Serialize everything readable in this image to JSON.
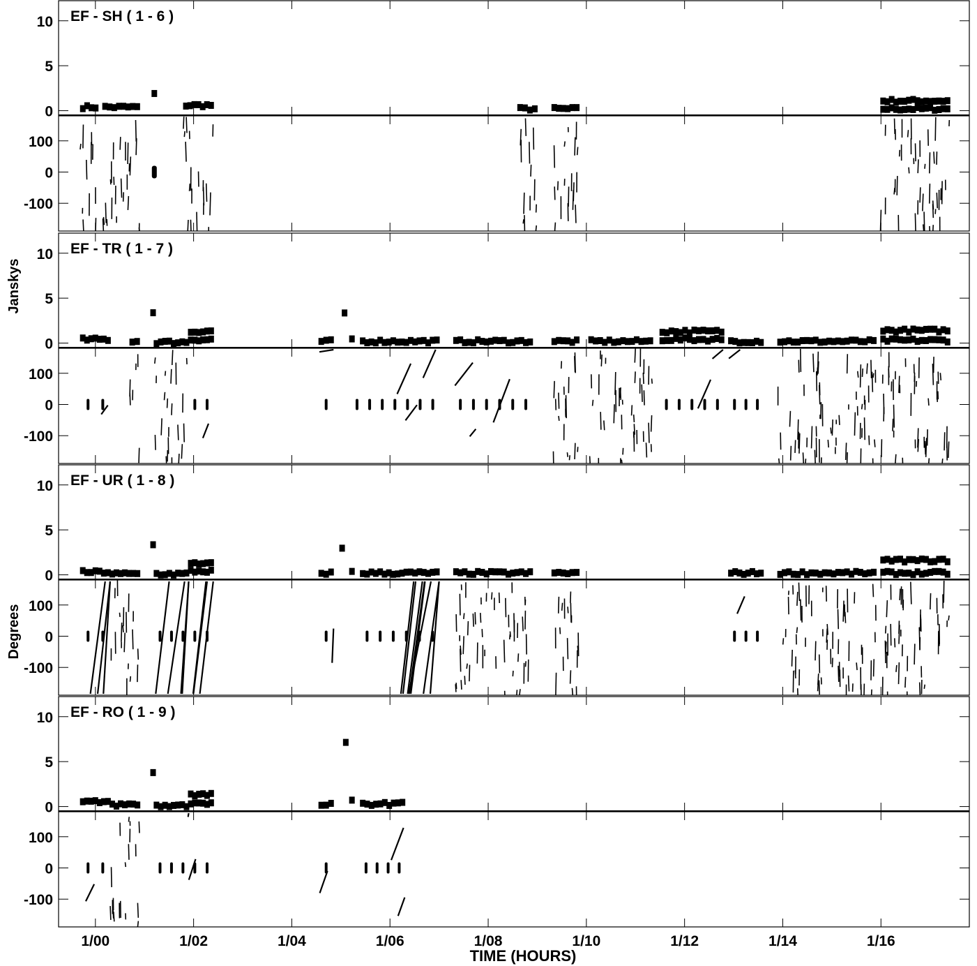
{
  "chart_data": {
    "type": "scatter",
    "xlabel": "TIME (HOURS)",
    "ylabel_amplitude": "Janskys",
    "ylabel_phase": "Degrees",
    "x_ticks": [
      {
        "value": 0,
        "label": "1/00"
      },
      {
        "value": 2,
        "label": "1/02"
      },
      {
        "value": 4,
        "label": "1/04"
      },
      {
        "value": 6,
        "label": "1/06"
      },
      {
        "value": 8,
        "label": "1/08"
      },
      {
        "value": 10,
        "label": "1/10"
      },
      {
        "value": 12,
        "label": "1/12"
      },
      {
        "value": 14,
        "label": "1/14"
      },
      {
        "value": 16,
        "label": "1/16"
      }
    ],
    "xlim": [
      -0.75,
      17.8
    ],
    "amp_ylim": [
      -0.5,
      12
    ],
    "amp_ticks": [
      {
        "value": 0,
        "label": "0"
      },
      {
        "value": 5,
        "label": "5"
      },
      {
        "value": 10,
        "label": "10"
      }
    ],
    "phase_ylim": [
      -180,
      180
    ],
    "phase_ticks": [
      {
        "value": -100,
        "label": "-100"
      },
      {
        "value": 0,
        "label": "0"
      },
      {
        "value": 100,
        "label": "100"
      }
    ],
    "panels": [
      {
        "title": "EF - SH ( 1 - 6 )",
        "amplitude": [
          {
            "t0": -0.3,
            "t1": 0.05,
            "amp": 0.4
          },
          {
            "t0": 0.15,
            "t1": 0.9,
            "amp": 0.4
          },
          {
            "t0": 1.15,
            "t1": 1.25,
            "amp": 1.8
          },
          {
            "t0": 1.8,
            "t1": 2.4,
            "amp": 0.6
          },
          {
            "t0": 8.6,
            "t1": 9.0,
            "amp": 0.2
          },
          {
            "t0": 9.3,
            "t1": 9.85,
            "amp": 0.2
          },
          {
            "t0": 16.0,
            "t1": 17.4,
            "amp": 0.2
          },
          {
            "t0": 16.0,
            "t1": 17.4,
            "amp": 1.1
          }
        ],
        "phase": [
          {
            "t0": -0.3,
            "t1": 0.05,
            "style": "noise"
          },
          {
            "t0": 0.15,
            "t1": 0.9,
            "style": "noise"
          },
          {
            "t0": 1.15,
            "t1": 1.25,
            "style": "zero"
          },
          {
            "t0": 1.8,
            "t1": 2.4,
            "style": "noise"
          },
          {
            "t0": 8.6,
            "t1": 9.0,
            "style": "noise"
          },
          {
            "t0": 9.3,
            "t1": 9.85,
            "style": "noise"
          },
          {
            "t0": 16.0,
            "t1": 17.4,
            "style": "noise"
          }
        ]
      },
      {
        "title": "EF - TR ( 1 - 7 )",
        "amplitude": [
          {
            "t0": -0.3,
            "t1": 0.3,
            "amp": 0.4
          },
          {
            "t0": 0.7,
            "t1": 0.9,
            "amp": 0.2
          },
          {
            "t0": 1.15,
            "t1": 1.2,
            "amp": 3.4
          },
          {
            "t0": 1.2,
            "t1": 1.9,
            "amp": 0.1
          },
          {
            "t0": 1.9,
            "t1": 2.4,
            "amp": 0.4
          },
          {
            "t0": 1.9,
            "t1": 2.4,
            "amp": 1.2
          },
          {
            "t0": 4.55,
            "t1": 4.85,
            "amp": 0.2
          },
          {
            "t0": 5.05,
            "t1": 5.1,
            "amp": 3.3
          },
          {
            "t0": 5.2,
            "t1": 5.25,
            "amp": 0.5
          },
          {
            "t0": 5.4,
            "t1": 7.0,
            "amp": 0.2
          },
          {
            "t0": 7.3,
            "t1": 8.9,
            "amp": 0.2
          },
          {
            "t0": 9.3,
            "t1": 9.85,
            "amp": 0.2
          },
          {
            "t0": 10.05,
            "t1": 11.35,
            "amp": 0.2
          },
          {
            "t0": 11.5,
            "t1": 12.8,
            "amp": 0.4
          },
          {
            "t0": 11.5,
            "t1": 12.8,
            "amp": 1.3
          },
          {
            "t0": 12.9,
            "t1": 13.6,
            "amp": 0.2
          },
          {
            "t0": 13.9,
            "t1": 15.9,
            "amp": 0.2
          },
          {
            "t0": 16.0,
            "t1": 17.4,
            "amp": 0.3
          },
          {
            "t0": 16.0,
            "t1": 17.4,
            "amp": 1.4
          }
        ],
        "phase": [
          {
            "t0": -0.3,
            "t1": 0.3,
            "style": "drift"
          },
          {
            "t0": 0.7,
            "t1": 0.9,
            "style": "noise"
          },
          {
            "t0": 1.2,
            "t1": 1.9,
            "style": "noise"
          },
          {
            "t0": 1.9,
            "t1": 2.4,
            "style": "drift"
          },
          {
            "t0": 4.55,
            "t1": 4.85,
            "style": "drift"
          },
          {
            "t0": 5.2,
            "t1": 7.0,
            "style": "drift"
          },
          {
            "t0": 7.3,
            "t1": 8.9,
            "style": "drift"
          },
          {
            "t0": 9.3,
            "t1": 9.85,
            "style": "noise"
          },
          {
            "t0": 10.05,
            "t1": 11.35,
            "style": "noise"
          },
          {
            "t0": 11.5,
            "t1": 12.8,
            "style": "drift"
          },
          {
            "t0": 12.9,
            "t1": 13.6,
            "style": "drift"
          },
          {
            "t0": 13.9,
            "t1": 15.9,
            "style": "noise"
          },
          {
            "t0": 16.0,
            "t1": 17.4,
            "style": "noise"
          }
        ]
      },
      {
        "title": "EF - UR ( 1 - 8 )",
        "amplitude": [
          {
            "t0": -0.3,
            "t1": 0.3,
            "amp": 0.3
          },
          {
            "t0": 0.3,
            "t1": 0.9,
            "amp": 0.1
          },
          {
            "t0": 1.15,
            "t1": 1.2,
            "amp": 3.4
          },
          {
            "t0": 1.2,
            "t1": 1.9,
            "amp": 0.1
          },
          {
            "t0": 1.9,
            "t1": 2.4,
            "amp": 0.4
          },
          {
            "t0": 1.9,
            "t1": 2.4,
            "amp": 1.2
          },
          {
            "t0": 4.55,
            "t1": 4.85,
            "amp": 0.2
          },
          {
            "t0": 5.0,
            "t1": 5.05,
            "amp": 2.9
          },
          {
            "t0": 5.2,
            "t1": 5.25,
            "amp": 0.4
          },
          {
            "t0": 5.4,
            "t1": 7.0,
            "amp": 0.2
          },
          {
            "t0": 7.3,
            "t1": 8.9,
            "amp": 0.2
          },
          {
            "t0": 9.3,
            "t1": 9.85,
            "amp": 0.2
          },
          {
            "t0": 12.9,
            "t1": 13.6,
            "amp": 0.2
          },
          {
            "t0": 13.9,
            "t1": 15.9,
            "amp": 0.2
          },
          {
            "t0": 16.0,
            "t1": 17.4,
            "amp": 0.2
          },
          {
            "t0": 16.0,
            "t1": 17.4,
            "amp": 1.6
          }
        ],
        "phase": [
          {
            "t0": -0.3,
            "t1": 0.3,
            "style": "wrap"
          },
          {
            "t0": 0.3,
            "t1": 0.9,
            "style": "noise"
          },
          {
            "t0": 1.2,
            "t1": 1.9,
            "style": "wrap"
          },
          {
            "t0": 1.9,
            "t1": 2.4,
            "style": "wrap"
          },
          {
            "t0": 4.55,
            "t1": 4.85,
            "style": "drift"
          },
          {
            "t0": 5.4,
            "t1": 7.0,
            "style": "wrap"
          },
          {
            "t0": 7.3,
            "t1": 8.9,
            "style": "noise"
          },
          {
            "t0": 9.3,
            "t1": 9.85,
            "style": "noise"
          },
          {
            "t0": 12.9,
            "t1": 13.6,
            "style": "drift"
          },
          {
            "t0": 13.9,
            "t1": 15.9,
            "style": "noise"
          },
          {
            "t0": 16.0,
            "t1": 17.4,
            "style": "noise"
          }
        ]
      },
      {
        "title": "EF - RO ( 1 - 9 )",
        "amplitude": [
          {
            "t0": -0.3,
            "t1": 0.3,
            "amp": 0.5
          },
          {
            "t0": 0.3,
            "t1": 0.9,
            "amp": 0.2
          },
          {
            "t0": 1.15,
            "t1": 1.2,
            "amp": 3.8
          },
          {
            "t0": 1.2,
            "t1": 1.9,
            "amp": 0.1
          },
          {
            "t0": 1.9,
            "t1": 2.4,
            "amp": 0.4
          },
          {
            "t0": 1.9,
            "t1": 2.4,
            "amp": 1.3
          },
          {
            "t0": 4.55,
            "t1": 4.85,
            "amp": 0.2
          },
          {
            "t0": 5.05,
            "t1": 5.15,
            "amp": 7.0
          },
          {
            "t0": 5.2,
            "t1": 5.25,
            "amp": 0.6
          },
          {
            "t0": 5.4,
            "t1": 6.3,
            "amp": 0.3
          }
        ],
        "phase": [
          {
            "t0": -0.3,
            "t1": 0.3,
            "style": "drift"
          },
          {
            "t0": 0.3,
            "t1": 0.9,
            "style": "noise"
          },
          {
            "t0": 1.2,
            "t1": 1.9,
            "style": "drift"
          },
          {
            "t0": 1.9,
            "t1": 2.4,
            "style": "drift"
          },
          {
            "t0": 4.55,
            "t1": 4.85,
            "style": "drift"
          },
          {
            "t0": 5.4,
            "t1": 6.3,
            "style": "drift"
          }
        ]
      }
    ]
  }
}
